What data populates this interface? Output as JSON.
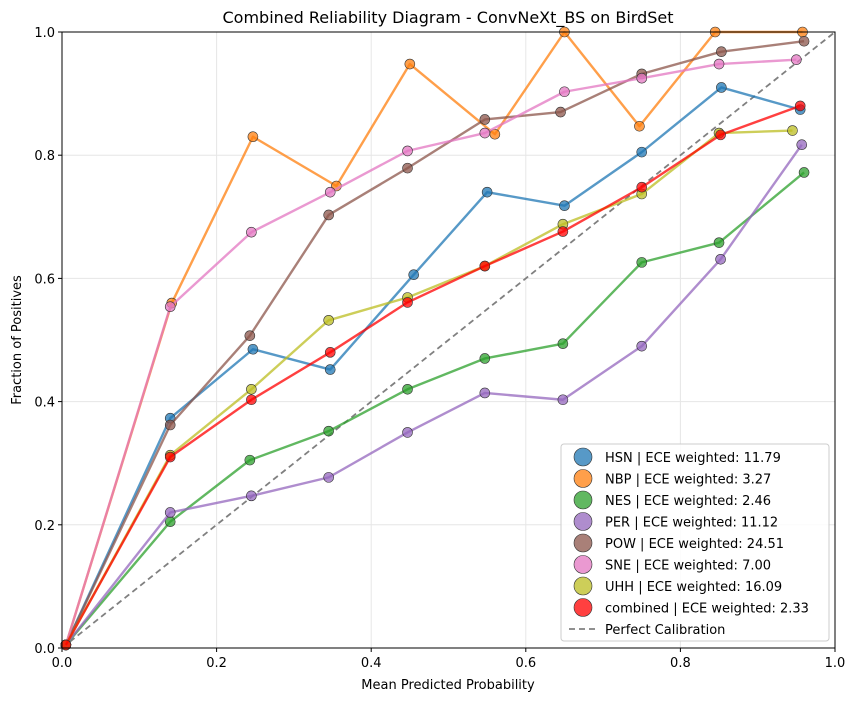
{
  "chart_data": {
    "type": "line",
    "title": "Combined Reliability Diagram - ConvNeXt_BS on BirdSet",
    "xlabel": "Mean Predicted Probability",
    "ylabel": "Fraction of Positives",
    "xlim": [
      0,
      1
    ],
    "ylim": [
      0,
      1
    ],
    "xticks": [
      "0.0",
      "0.2",
      "0.4",
      "0.6",
      "0.8",
      "1.0"
    ],
    "yticks": [
      "0.0",
      "0.2",
      "0.4",
      "0.6",
      "0.8",
      "1.0"
    ],
    "grid": true,
    "legend_position": "lower-right",
    "series": [
      {
        "name": "HSN | ECE weighted: 11.79",
        "color": "#1f77b4",
        "x": [
          0.005,
          0.14,
          0.247,
          0.347,
          0.455,
          0.55,
          0.65,
          0.75,
          0.853,
          0.955
        ],
        "y": [
          0.005,
          0.373,
          0.485,
          0.452,
          0.606,
          0.74,
          0.718,
          0.805,
          0.91,
          0.874
        ]
      },
      {
        "name": "NBP | ECE weighted: 3.27",
        "color": "#ff7f0e",
        "x": [
          0.005,
          0.142,
          0.247,
          0.355,
          0.45,
          0.56,
          0.65,
          0.747,
          0.845,
          0.958
        ],
        "y": [
          0.005,
          0.56,
          0.83,
          0.75,
          0.948,
          0.834,
          1.0,
          0.847,
          1.0,
          1.0
        ]
      },
      {
        "name": "NES | ECE weighted: 2.46",
        "color": "#2ca02c",
        "x": [
          0.005,
          0.14,
          0.243,
          0.345,
          0.447,
          0.547,
          0.648,
          0.75,
          0.85,
          0.96
        ],
        "y": [
          0.005,
          0.205,
          0.305,
          0.352,
          0.42,
          0.47,
          0.494,
          0.626,
          0.658,
          0.772
        ]
      },
      {
        "name": "PER | ECE weighted: 11.12",
        "color": "#9467bd",
        "x": [
          0.005,
          0.14,
          0.245,
          0.345,
          0.447,
          0.547,
          0.648,
          0.75,
          0.852,
          0.957
        ],
        "y": [
          0.005,
          0.22,
          0.247,
          0.277,
          0.35,
          0.414,
          0.403,
          0.49,
          0.631,
          0.817
        ]
      },
      {
        "name": "POW | ECE weighted: 24.51",
        "color": "#8c564b",
        "x": [
          0.005,
          0.14,
          0.243,
          0.345,
          0.447,
          0.547,
          0.645,
          0.75,
          0.853,
          0.96
        ],
        "y": [
          0.005,
          0.362,
          0.507,
          0.703,
          0.779,
          0.858,
          0.87,
          0.932,
          0.968,
          0.985
        ]
      },
      {
        "name": "SNE | ECE weighted: 7.00",
        "color": "#e377c2",
        "x": [
          0.005,
          0.14,
          0.245,
          0.347,
          0.447,
          0.547,
          0.65,
          0.75,
          0.85,
          0.95
        ],
        "y": [
          0.005,
          0.554,
          0.675,
          0.74,
          0.807,
          0.836,
          0.903,
          0.925,
          0.948,
          0.955
        ]
      },
      {
        "name": "UHH | ECE weighted: 16.09",
        "color": "#bcbd22",
        "x": [
          0.005,
          0.14,
          0.245,
          0.345,
          0.447,
          0.547,
          0.648,
          0.75,
          0.85,
          0.945
        ],
        "y": [
          0.005,
          0.313,
          0.42,
          0.532,
          0.569,
          0.62,
          0.688,
          0.737,
          0.836,
          0.84
        ]
      },
      {
        "name": "combined | ECE weighted: 2.33",
        "color": "#ff0000",
        "x": [
          0.005,
          0.14,
          0.245,
          0.347,
          0.447,
          0.547,
          0.648,
          0.75,
          0.852,
          0.955
        ],
        "y": [
          0.005,
          0.31,
          0.403,
          0.48,
          0.561,
          0.62,
          0.676,
          0.748,
          0.833,
          0.88
        ]
      }
    ],
    "reference_line": {
      "name": "Perfect Calibration",
      "color": "#808080",
      "x": [
        0,
        1
      ],
      "y": [
        0,
        1
      ]
    }
  }
}
